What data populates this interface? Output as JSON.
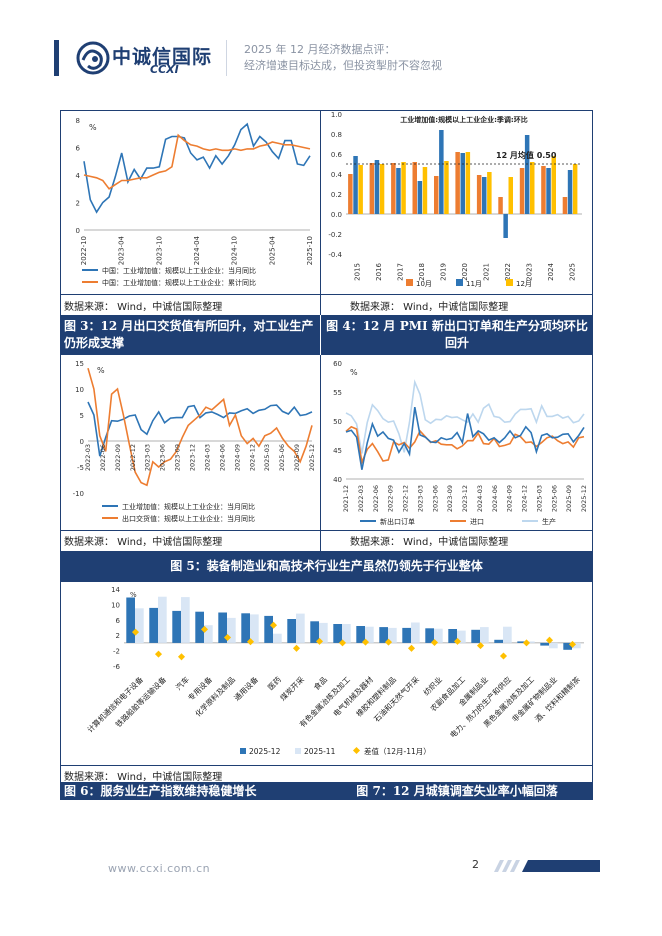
{
  "header": {
    "brand_cn": "中诚信国际",
    "brand_en": "CCXI",
    "title_line1": "2025 年 12 月经济数据点评：",
    "title_line2": "经济增速目标达成，但投资掣肘不容忽视",
    "colors": {
      "primary": "#1f3f73",
      "orange": "#ed7d31",
      "blue": "#2e75b6",
      "light_blue": "#bdd7ee"
    }
  },
  "source_note": "数据来源： Wind，中诚信国际整理",
  "captions": {
    "fig3": "图 3：12 月出口交货值有所回升，对工业生产仍形成支撑",
    "fig4": "图 4：12 月 PMI 新出口订单和生产分项均环比回升",
    "fig5": "图 5：装备制造业和高技术行业生产虽然仍领先于行业整体",
    "fig6": "图 6：服务业生产指数维持稳健增长",
    "fig7": "图 7：12 月城镇调查失业率小幅回落"
  },
  "footer": {
    "url": "www.ccxi.com.cn",
    "page": "2"
  },
  "chart_data": [
    {
      "id": "chart-industrial-yoy",
      "type": "line",
      "ylabel": "%",
      "ylim": [
        0,
        8
      ],
      "yticks": [
        0,
        2,
        4,
        6,
        8
      ],
      "x_tick_labels": [
        "2022-10",
        "2023-04",
        "2023-10",
        "2024-04",
        "2024-10",
        "2025-04",
        "2025-10"
      ],
      "series": [
        {
          "name": "中国：工业增加值：规模以上工业企业：当月同比",
          "color": "#2e75b6",
          "values": [
            5.0,
            2.2,
            1.3,
            2.0,
            2.4,
            3.9,
            5.6,
            3.5,
            4.4,
            3.7,
            4.5,
            4.5,
            4.6,
            6.6,
            6.8,
            6.8,
            6.7,
            5.6,
            5.1,
            5.3,
            4.5,
            5.4,
            4.8,
            5.4,
            6.2,
            7.3,
            7.7,
            6.1,
            6.8,
            6.4,
            5.7,
            5.2,
            6.5,
            6.5,
            4.8,
            4.7,
            5.4
          ]
        },
        {
          "name": "中国：工业增加值：规模以上工业企业：累计同比",
          "color": "#ed7d31",
          "values": [
            4.0,
            3.9,
            3.8,
            3.6,
            3.0,
            3.3,
            3.6,
            3.6,
            3.7,
            3.8,
            3.8,
            4.0,
            4.2,
            4.3,
            4.6,
            6.9,
            6.5,
            6.2,
            6.1,
            5.9,
            5.8,
            5.9,
            5.8,
            5.8,
            5.9,
            5.8,
            5.9,
            5.9,
            6.1,
            6.2,
            6.4,
            6.3,
            6.2,
            6.2,
            6.1,
            6.0,
            5.9
          ]
        }
      ]
    },
    {
      "id": "chart-pmi-mom",
      "type": "bar",
      "title": "工业增加值:规模以上工业企业:季调:环比",
      "annotation": "12 月均值 0.50",
      "ylim": [
        -0.4,
        1.0
      ],
      "yticks": [
        -0.4,
        -0.2,
        0.0,
        0.2,
        0.4,
        0.6,
        0.8,
        1.0
      ],
      "categories": [
        "2015",
        "2016",
        "2017",
        "2018",
        "2019",
        "2020",
        "2021",
        "2022",
        "2023",
        "2024",
        "2025"
      ],
      "series": [
        {
          "name": "10月",
          "color": "#ed7d31",
          "values": [
            0.4,
            0.51,
            0.51,
            0.52,
            0.38,
            0.62,
            0.39,
            0.17,
            0.46,
            0.48,
            0.17
          ]
        },
        {
          "name": "11月",
          "color": "#2e75b6",
          "values": [
            0.58,
            0.54,
            0.46,
            0.33,
            0.84,
            0.61,
            0.37,
            -0.24,
            0.79,
            0.46,
            0.44
          ]
        },
        {
          "name": "12月",
          "color": "#ffc000",
          "values": [
            0.49,
            0.5,
            0.52,
            0.47,
            0.53,
            0.62,
            0.42,
            0.37,
            0.52,
            0.58,
            0.5
          ]
        }
      ]
    },
    {
      "id": "chart-export-delivery",
      "type": "line",
      "ylim": [
        -10,
        15
      ],
      "yticks": [
        -10,
        -5,
        0,
        5,
        10,
        15
      ],
      "ylabel": "%",
      "x_tick_labels": [
        "2022-03",
        "2022-06",
        "2022-09",
        "2022-12",
        "2023-03",
        "2023-06",
        "2023-09",
        "2023-12",
        "2024-03",
        "2024-06",
        "2024-09",
        "2024-12",
        "2025-03",
        "2025-06",
        "2025-09",
        "2025-12"
      ],
      "series": [
        {
          "name": "工业增加值：规模以上工业企业：当月同比",
          "color": "#2e75b6",
          "values": [
            7.5,
            5.0,
            -2.9,
            0.7,
            3.9,
            3.8,
            4.2,
            4.8,
            5.0,
            2.2,
            1.3,
            3.9,
            5.6,
            3.5,
            4.4,
            4.5,
            4.5,
            6.6,
            6.8,
            4.5,
            5.4,
            5.6,
            5.1,
            4.5,
            5.4,
            5.3,
            5.8,
            6.2,
            5.3,
            5.9,
            6.1,
            6.8,
            6.9,
            5.7,
            5.2,
            6.5,
            4.9,
            5.1,
            5.6
          ]
        },
        {
          "name": "出口交货值：规模以上工业企业：当月同比",
          "color": "#ed7d31",
          "values": [
            14.0,
            10.0,
            1.0,
            -2.0,
            9.0,
            10.0,
            5.0,
            -0.6,
            -6.0,
            -8.0,
            -8.5,
            -4.0,
            -5.0,
            -4.0,
            -3.5,
            -2.0,
            0.7,
            3.0,
            4.0,
            5.0,
            6.5,
            6.0,
            7.0,
            8.0,
            3.0,
            5.0,
            1.0,
            -0.5,
            0.5,
            -1.0,
            1.0,
            1.5,
            2.5,
            0.5,
            -1.0,
            -2.0,
            -4.0,
            -1.0,
            3.0
          ]
        }
      ]
    },
    {
      "id": "chart-pmi-sub",
      "type": "line",
      "ylabel": "%",
      "ylim": [
        40,
        60
      ],
      "yticks": [
        40,
        45,
        50,
        55,
        60
      ],
      "x_tick_labels": [
        "2021-12",
        "2022-03",
        "2022-06",
        "2022-09",
        "2022-12",
        "2023-03",
        "2023-06",
        "2023-09",
        "2023-12",
        "2024-03",
        "2024-06",
        "2024-09",
        "2024-12",
        "2025-03",
        "2025-06",
        "2025-09",
        "2025-12"
      ],
      "series": [
        {
          "name": "新出口订单",
          "color": "#2e75b6",
          "values": [
            48.1,
            48.4,
            47.2,
            41.6,
            46.2,
            49.5,
            47.4,
            48.1,
            47.0,
            46.7,
            44.6,
            46.1,
            44.3,
            52.4,
            47.6,
            47.2,
            46.4,
            46.3,
            47.1,
            46.8,
            47.0,
            48.0,
            46.3,
            51.3,
            47.3,
            48.3,
            47.8,
            46.7,
            47.1,
            46.3,
            47.1,
            48.3,
            47.1,
            47.5,
            49.0,
            48.0,
            44.7,
            47.5,
            47.8,
            47.1,
            47.2,
            47.7,
            47.8,
            46.4,
            47.5,
            48.9
          ]
        },
        {
          "name": "进口",
          "color": "#ed7d31",
          "values": [
            48.2,
            49.0,
            48.6,
            42.9,
            45.1,
            46.1,
            44.7,
            43.1,
            43.3,
            46.4,
            45.9,
            46.3,
            45.3,
            46.4,
            48.3,
            47.3,
            46.3,
            46.6,
            46.0,
            45.9,
            45.9,
            45.2,
            45.7,
            46.6,
            46.6,
            47.9,
            46.1,
            46.0,
            47.0,
            45.6,
            45.8,
            46.1,
            47.7,
            47.3,
            46.3,
            46.4,
            45.6,
            46.3,
            47.1,
            47.4,
            46.6,
            46.1,
            46.4,
            45.5,
            47.1,
            47.3
          ]
        },
        {
          "name": "生产",
          "color": "#bdd7ee",
          "values": [
            51.4,
            50.9,
            49.5,
            44.4,
            49.7,
            52.8,
            51.8,
            50.4,
            49.8,
            50.0,
            47.8,
            44.6,
            49.8,
            56.7,
            54.6,
            50.2,
            49.6,
            50.3,
            50.2,
            50.9,
            50.6,
            50.7,
            50.2,
            49.8,
            51.2,
            49.8,
            52.2,
            52.9,
            50.8,
            50.6,
            49.8,
            49.9,
            51.2,
            52.0,
            52.0,
            52.1,
            49.8,
            52.6,
            50.8,
            50.8,
            51.1,
            50.5,
            50.8,
            49.7,
            50.0,
            51.2
          ]
        }
      ]
    },
    {
      "id": "chart-industry-breakdown",
      "type": "bar",
      "ylabel": "%",
      "ylim": [
        -6,
        14
      ],
      "yticks": [
        -6,
        -2,
        2,
        6,
        10,
        14
      ],
      "categories": [
        "计算机通信和电子设备",
        "铁路船舶等运输设备",
        "汽车",
        "专用设备",
        "化学原料及制品",
        "通用设备",
        "医药",
        "煤炭开采",
        "食品",
        "有色金属冶炼及加工",
        "电气机械及器材",
        "橡胶和塑料制品",
        "石油和天然气开采",
        "纺织业",
        "农副食品加工",
        "金属制品业",
        "电力、热力的生产和供应",
        "黑色金属冶炼及加工",
        "非金属矿物制品业",
        "酒、饮料和精制茶"
      ],
      "series": [
        {
          "name": "2025-12",
          "color": "#2e75b6",
          "values": [
            11.8,
            9.1,
            8.3,
            8.1,
            7.9,
            7.7,
            7.0,
            6.2,
            5.6,
            4.9,
            4.4,
            4.1,
            3.9,
            3.8,
            3.6,
            3.4,
            0.8,
            0.4,
            -0.7,
            -1.8
          ]
        },
        {
          "name": "2025-11",
          "color": "#d9e6f5",
          "values": [
            9.0,
            12.0,
            11.9,
            4.6,
            6.5,
            7.4,
            2.4,
            7.6,
            5.2,
            4.9,
            4.2,
            3.9,
            5.3,
            3.7,
            3.2,
            4.1,
            4.2,
            0.4,
            -1.4,
            -1.4
          ]
        },
        {
          "name": "差值（12月-11月）",
          "color": "#ffc000",
          "values": [
            2.8,
            -2.9,
            -3.6,
            3.5,
            1.4,
            0.3,
            4.6,
            -1.4,
            0.4,
            0.0,
            0.2,
            0.2,
            -1.4,
            0.1,
            0.4,
            -0.7,
            -3.4,
            0.0,
            0.7,
            -0.4
          ]
        }
      ]
    }
  ]
}
